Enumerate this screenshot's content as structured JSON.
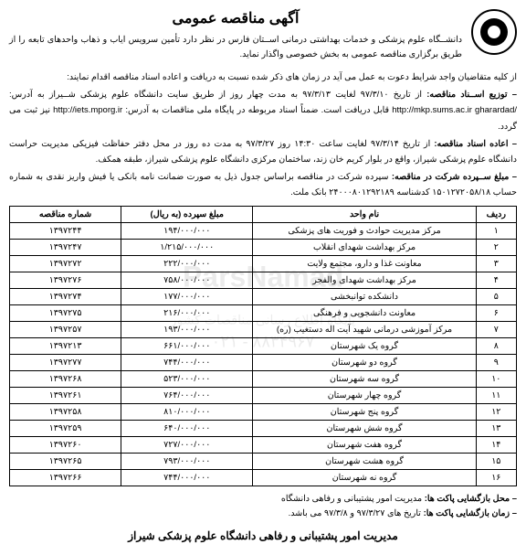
{
  "title": "آگهی مناقصه عمومی",
  "intro": "دانشــگاه علوم پزشکی و خدمات بهداشتی درمانی اســتان فارس در نظر دارد تأمین سرویس ایاب و ذهاب واحدهای تابعه را از طریق برگزاری مناقصه عمومی به بخش خصوصی واگذار نماید.",
  "line_invite": "از کلیه متقاضیان واجد شرایط دعوت به عمل می آید در زمان های ذکر شده نسبت به دریافت و اعاده اسناد مناقصه اقدام نمایند:",
  "dist_label": "– توزیع اســناد مناقصه:",
  "dist_text": " از تاریخ ۹۷/۳/۱۰ لغایت ۹۷/۳/۱۳ به مدت چهار روز از طریق سایت دانشگاه علوم پزشکی شــیراز به آدرس: /http://mkp.sums.ac.ir gharardad قابل دریافت است. ضمناً اسناد مربوطه در پایگاه ملی مناقصات به آدرس: http://iets.mporg.ir نیز ثبت می گردد.",
  "return_label": "– اعاده اسناد مناقصه:",
  "return_text": " از تاریخ ۹۷/۳/۱۴ لغایت ساعت ۱۴:۳۰ روز ۹۷/۳/۲۷ به مدت ده روز در محل دفتر حفاظت فیزیکی مدیریت حراست دانشگاه علوم پزشکی شیراز، واقع در بلوار کریم خان زند، ساختمان مرکزی دانشگاه علوم پزشکی شیراز، طبقه همکف.",
  "deposit_label": "– مبلغ ســپرده شرکت در مناقصه:",
  "deposit_text": " سپرده شرکت در مناقصه براساس جدول ذیل به صورت ضمانت نامه بانکی یا فیش واریز نقدی به شماره حساب ۱۵۰۱۲۷۲۰۵۸/۱۸ کدشناسه ۲۴۰۰۰۸۰۱۲۹۲۱۸۹ بانک ملت.",
  "columns": {
    "row": "ردیف",
    "name": "نام واحد",
    "amount": "مبلغ سپرده (به ریال)",
    "num": "شماره مناقصه"
  },
  "rows": [
    {
      "r": "۱",
      "name": "مرکز مدیریت حوادث و فوریت های پزشکی",
      "amount": "۱۹۴/۰۰۰/۰۰۰",
      "num": "۱۳۹۷۲۴۴"
    },
    {
      "r": "۲",
      "name": "مرکز بهداشت شهدای انقلاب",
      "amount": "۱/۲۱۵/۰۰۰/۰۰۰",
      "num": "۱۳۹۷۲۴۷"
    },
    {
      "r": "۳",
      "name": "معاونت غذا و دارو، مجتمع ولایت",
      "amount": "۲۲۲/۰۰۰/۰۰۰",
      "num": "۱۳۹۷۲۷۲"
    },
    {
      "r": "۴",
      "name": "مرکز بهداشت شهدای والفجر",
      "amount": "۷۵۸/۰۰۰/۰۰۰",
      "num": "۱۳۹۷۲۷۶"
    },
    {
      "r": "۵",
      "name": "دانشکده توانبخشی",
      "amount": "۱۷۷/۰۰۰/۰۰۰",
      "num": "۱۳۹۷۲۷۴"
    },
    {
      "r": "۶",
      "name": "معاونت دانشجویی و فرهنگی",
      "amount": "۲۱۶/۰۰۰/۰۰۰",
      "num": "۱۳۹۷۲۷۵"
    },
    {
      "r": "۷",
      "name": "مرکز آموزشی درمانی شهید آیت اله دستغیب (ره)",
      "amount": "۱۹۳/۰۰۰/۰۰۰",
      "num": "۱۳۹۷۲۵۷"
    },
    {
      "r": "۸",
      "name": "گروه یک شهرستان",
      "amount": "۶۶۱/۰۰۰/۰۰۰",
      "num": "۱۳۹۷۲۱۳"
    },
    {
      "r": "۹",
      "name": "گروه دو شهرستان",
      "amount": "۷۴۴/۰۰۰/۰۰۰",
      "num": "۱۳۹۷۲۷۷"
    },
    {
      "r": "۱۰",
      "name": "گروه سه شهرستان",
      "amount": "۵۲۳/۰۰۰/۰۰۰",
      "num": "۱۳۹۷۲۶۸"
    },
    {
      "r": "۱۱",
      "name": "گروه چهار شهرستان",
      "amount": "۷۶۴/۰۰۰/۰۰۰",
      "num": "۱۳۹۷۲۶۱"
    },
    {
      "r": "۱۲",
      "name": "گروه پنج شهرستان",
      "amount": "۸۱۰/۰۰۰/۰۰۰",
      "num": "۱۳۹۷۲۵۸"
    },
    {
      "r": "۱۳",
      "name": "گروه شش شهرستان",
      "amount": "۶۴۰/۰۰۰/۰۰۰",
      "num": "۱۳۹۷۲۵۹"
    },
    {
      "r": "۱۴",
      "name": "گروه هفت شهرستان",
      "amount": "۷۲۷/۰۰۰/۰۰۰",
      "num": "۱۳۹۷۲۶۰"
    },
    {
      "r": "۱۵",
      "name": "گروه هشت شهرستان",
      "amount": "۷۹۳/۰۰۰/۰۰۰",
      "num": "۱۳۹۷۲۶۵"
    },
    {
      "r": "۱۶",
      "name": "گروه نه شهرستان",
      "amount": "۷۴۴/۰۰۰/۰۰۰",
      "num": "۱۳۹۷۲۶۶"
    }
  ],
  "open_loc_label": "– محل بازگشایی پاکت ها:",
  "open_loc_text": " مدیریت امور پشتیبانی و رفاهی دانشگاه",
  "open_time_label": "– زمان بازگشایی پاکت ها:",
  "open_time_text": " تاریخ های ۹۷/۳/۲۷ و ۹۷/۳/۸ می باشد.",
  "footer_title": "مدیریت امور پشتیبانی و رفاهی دانشگاه علوم پزشکی شیراز",
  "watermark_main": "ParsNamad",
  "watermark_sub": "پایگاه اطلاع رسانی مناقصات کشور",
  "watermark_phone": "۰۲۱ - ۸۸۳۴۹۶۷"
}
